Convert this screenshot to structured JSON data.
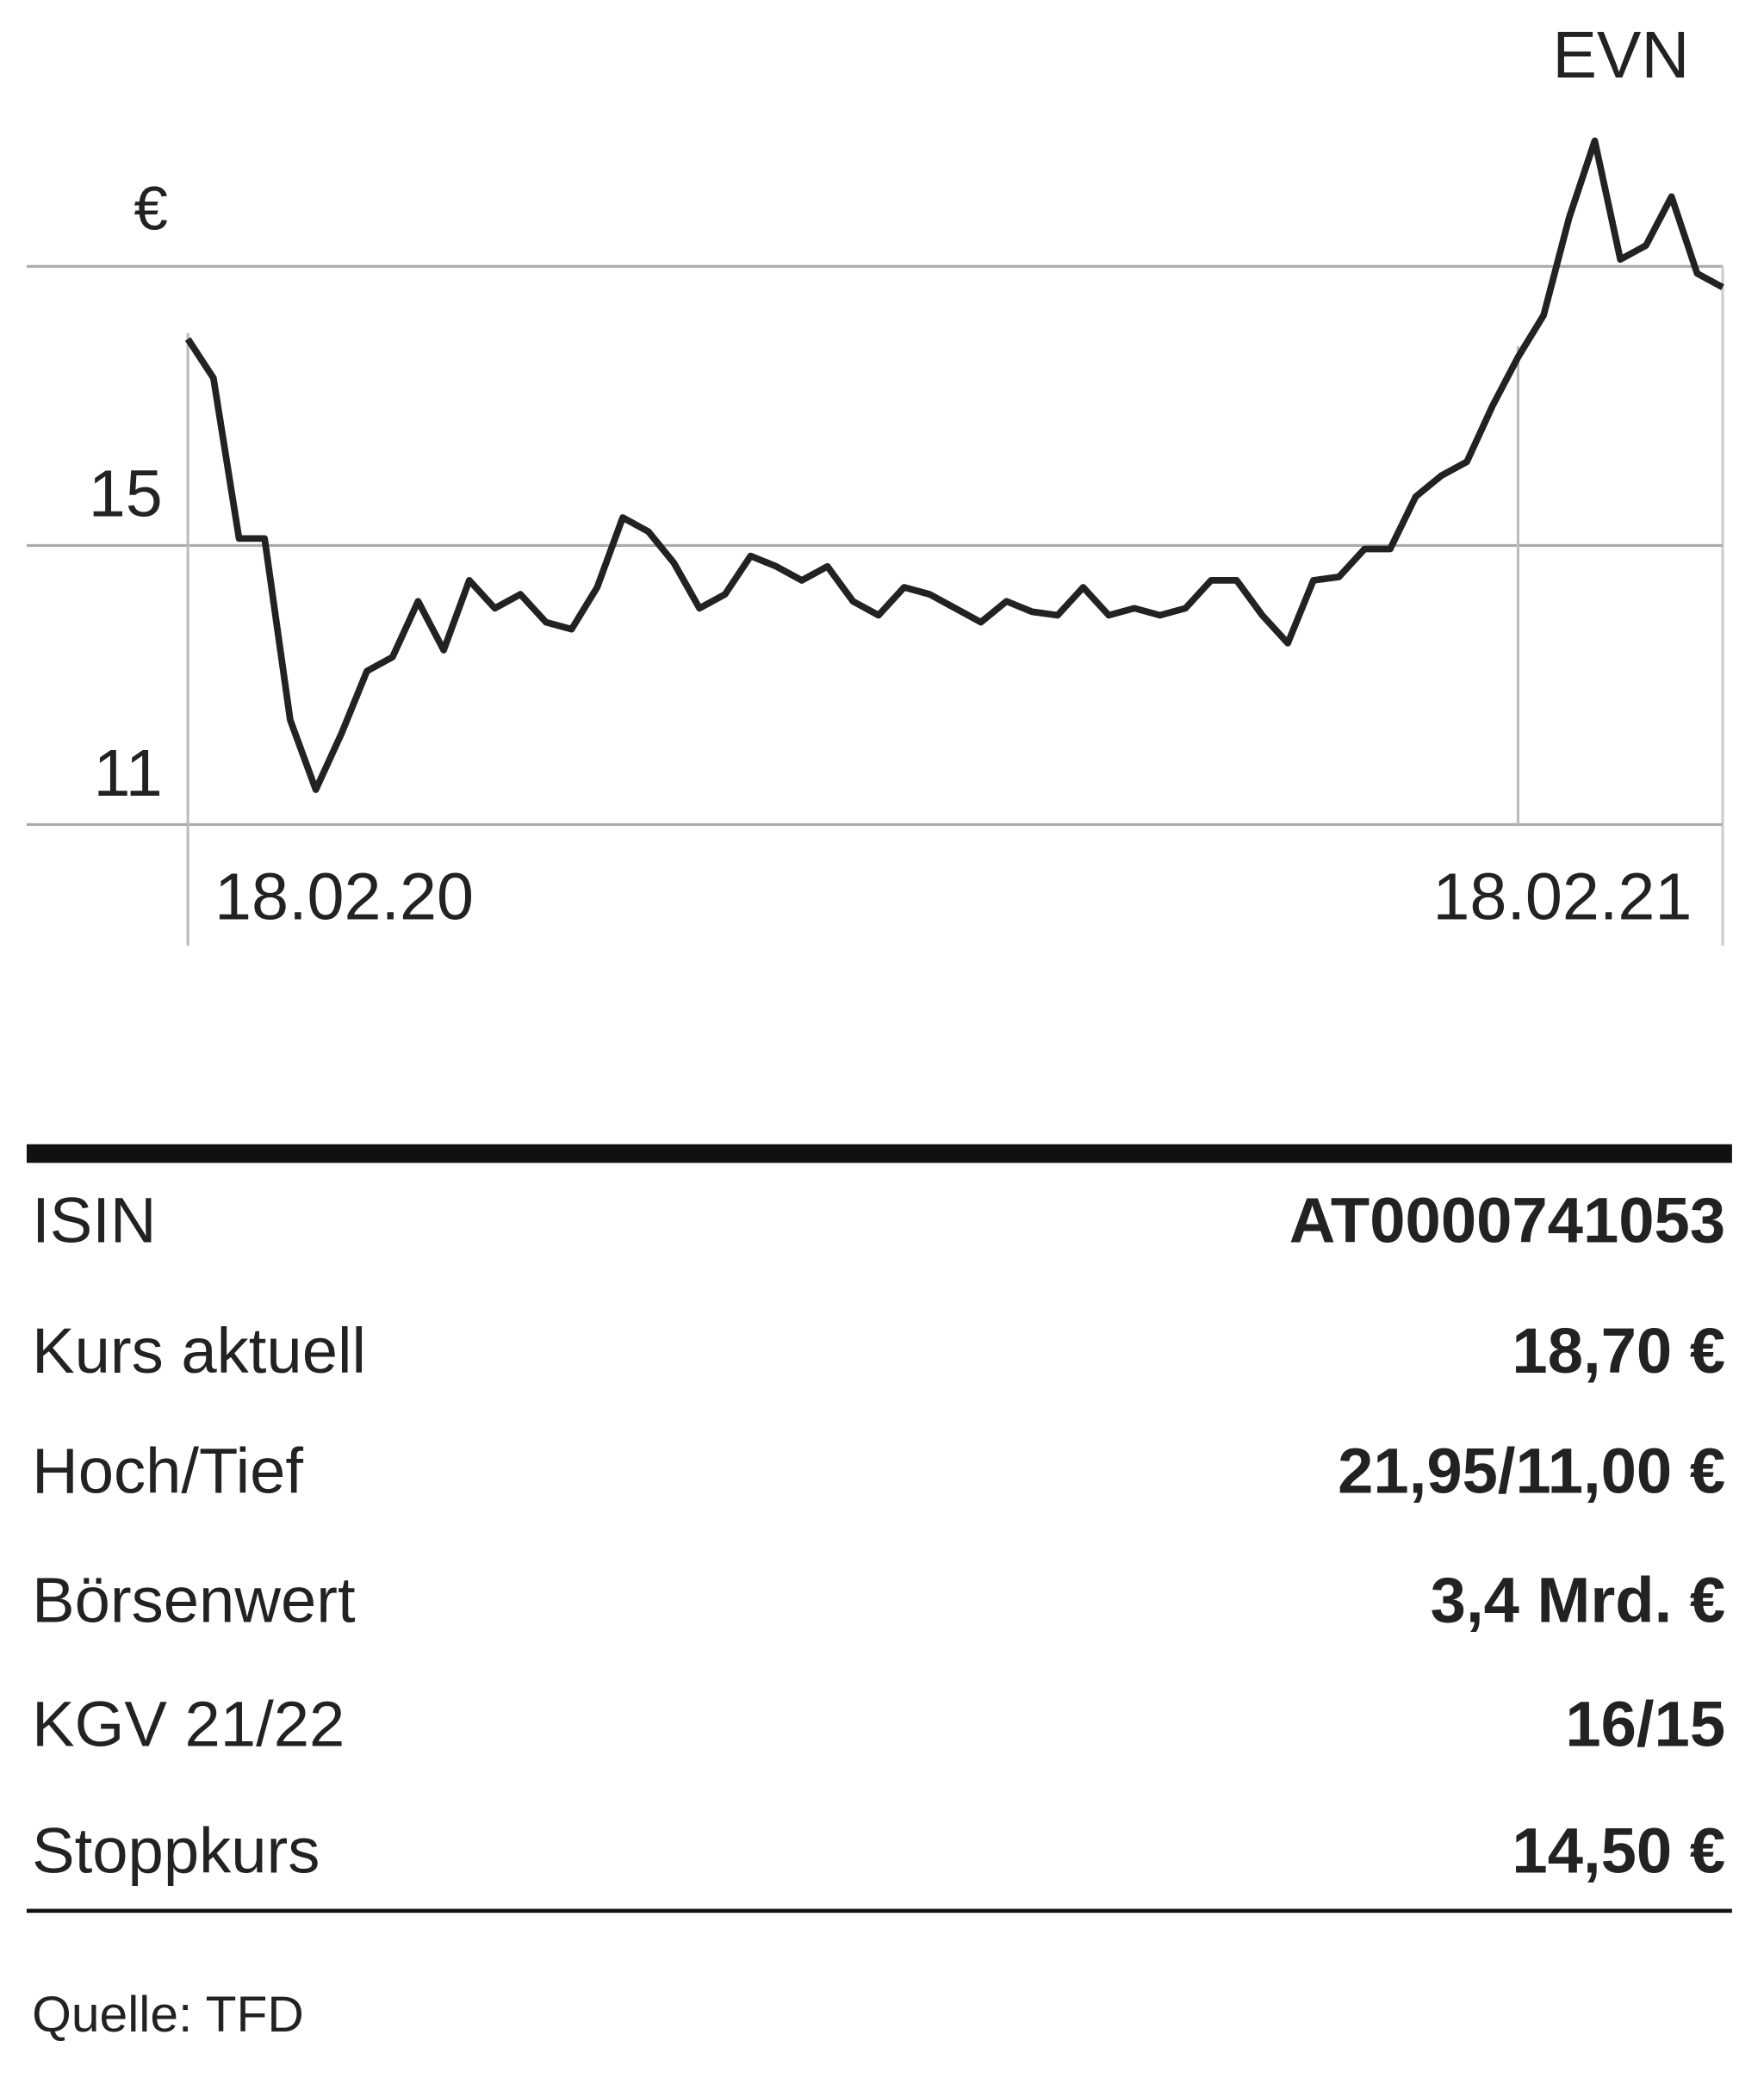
{
  "chart_data": {
    "type": "line",
    "title": "EVN",
    "y_label": "€",
    "values": [
      17.96,
      17.4,
      15.1,
      15.1,
      12.5,
      11.5,
      12.3,
      13.2,
      13.4,
      14.2,
      13.5,
      14.5,
      14.1,
      14.3,
      13.9,
      13.8,
      14.4,
      15.4,
      15.2,
      14.75,
      14.1,
      14.3,
      14.85,
      14.7,
      14.5,
      14.7,
      14.2,
      14.0,
      14.4,
      14.3,
      14.1,
      13.9,
      14.2,
      14.05,
      14.0,
      14.4,
      14.0,
      14.1,
      14.0,
      14.1,
      14.5,
      14.5,
      14.0,
      13.6,
      14.5,
      14.55,
      14.95,
      14.95,
      15.7,
      16.0,
      16.2,
      17.0,
      17.7,
      18.3,
      19.7,
      20.8,
      19.1,
      19.3,
      20.0,
      18.9,
      18.7
    ],
    "color": "#222222",
    "xlim": [
      0,
      60
    ],
    "xticks": [
      {
        "value": 0,
        "label": "18.02.20"
      },
      {
        "value": 52,
        "label": "18.02.21"
      }
    ],
    "ylim": [
      11,
      19
    ],
    "yticks": [
      11,
      15
    ],
    "grid": true
  },
  "table": {
    "rows": [
      [
        "ISIN",
        "AT0000741053"
      ],
      [
        "Kurs aktuell",
        "18,70 €"
      ],
      [
        "Hoch/Tief",
        "21,95/11,00 €"
      ],
      [
        "Börsenwert",
        "3,4 Mrd. €"
      ],
      [
        "KGV 21/22",
        "16/15"
      ],
      [
        "Stoppkurs",
        "14,50 €"
      ]
    ]
  },
  "source": "Quelle: TFD"
}
